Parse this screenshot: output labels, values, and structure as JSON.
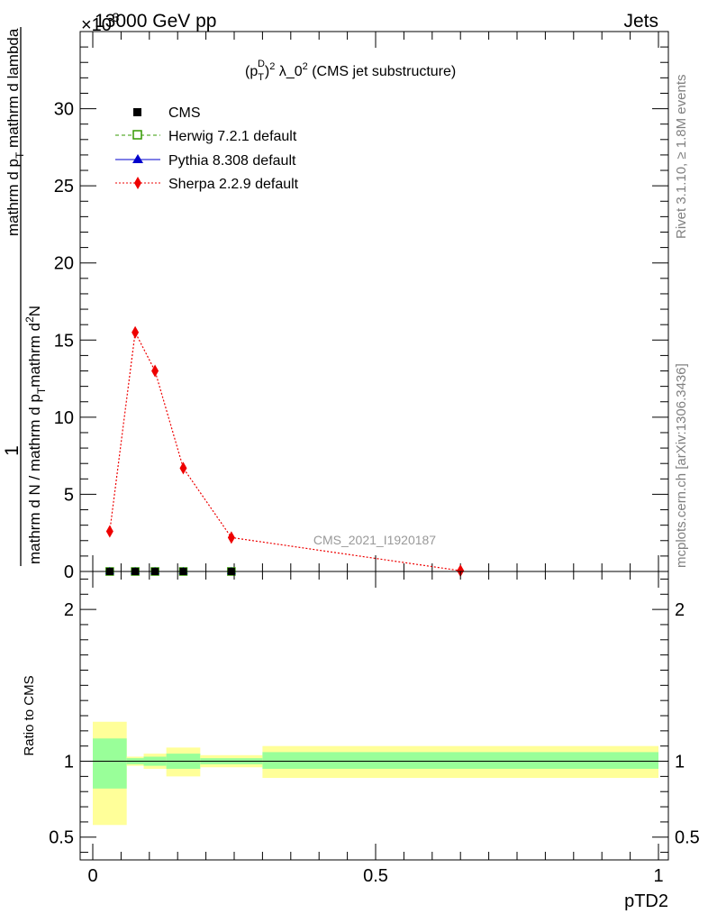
{
  "header": {
    "energy_label": "13000 GeV pp",
    "process_label": "Jets",
    "scale_factor_label": "×10",
    "scale_factor_exponent": "-3"
  },
  "side_labels": {
    "rivet_version": "Rivet 3.1.10, ≥ 1.8M events",
    "site_reference": "mcplots.cern.ch [arXiv:1306.3436]"
  },
  "analysis_id": "CMS_2021_I1920187",
  "colors": {
    "cms": "#000000",
    "herwig": "#339900",
    "pythia": "#0000cc",
    "sherpa": "#ee0000",
    "band_inner": "#99ff99",
    "band_outer": "#ffff99"
  },
  "chart_data": [
    {
      "type": "line",
      "title_parts": {
        "base": "(p",
        "sub": "T",
        "sup_d": "D",
        "sup_2": "2",
        "rest": " λ_0",
        "rest_sup": "2",
        "tail": " (CMS jet substructure)"
      },
      "ylabel_parts": {
        "numerator": "1",
        "denominator": "mathrm d N / mathrm d p",
        "denominator_sub": "T",
        "term2": "mathrm d",
        "term2_sup": "2",
        "term2_rest": "N",
        "term3": "mathrm d p",
        "term3_sub": "T",
        "term4": " mathrm d lambda"
      },
      "xlim": [
        0,
        1
      ],
      "ylim": [
        0,
        35
      ],
      "y_ticks": [
        0,
        5,
        10,
        15,
        20,
        25,
        30
      ],
      "y_tick_labels": [
        "0",
        "5",
        "10",
        "15",
        "20",
        "25",
        "30"
      ],
      "legend": [
        {
          "name": "CMS",
          "marker": "square-filled"
        },
        {
          "name": "Herwig 7.2.1 default",
          "marker": "square-open",
          "line": "dashed"
        },
        {
          "name": "Pythia 8.308 default",
          "marker": "triangle",
          "line": "solid"
        },
        {
          "name": "Sherpa 2.2.9 default",
          "marker": "diamond",
          "line": "dotted"
        }
      ],
      "series": [
        {
          "name": "CMS",
          "x": [
            0.03,
            0.075,
            0.11,
            0.16,
            0.245
          ],
          "y": [
            0,
            0,
            0,
            0,
            0
          ]
        },
        {
          "name": "Herwig 7.2.1 default",
          "x": [
            0.03,
            0.075,
            0.11,
            0.16,
            0.245
          ],
          "y": [
            0,
            0,
            0,
            0,
            0
          ]
        },
        {
          "name": "Pythia 8.308 default",
          "x": [
            0.03,
            0.075,
            0.11,
            0.16,
            0.245
          ],
          "y": [
            0,
            0,
            0,
            0,
            0
          ]
        },
        {
          "name": "Sherpa 2.2.9 default",
          "x": [
            0.03,
            0.075,
            0.11,
            0.16,
            0.245,
            0.65
          ],
          "y": [
            2.6,
            15.5,
            13.0,
            6.7,
            2.2,
            0.05
          ]
        }
      ]
    },
    {
      "type": "area",
      "ylabel": "Ratio to CMS",
      "xlabel": "pTD2",
      "xlim": [
        0,
        1
      ],
      "ylim": [
        0.35,
        2.25
      ],
      "x_ticks": [
        0,
        0.5,
        1
      ],
      "x_tick_labels": [
        "0",
        "0.5",
        "1"
      ],
      "y_ticks": [
        0.5,
        1,
        2
      ],
      "y_tick_labels": [
        "0.5",
        "1",
        "2"
      ],
      "reference_line": 1,
      "bins": [
        {
          "x_low": 0.0,
          "x_high": 0.06,
          "inner": [
            0.82,
            1.15
          ],
          "outer": [
            0.58,
            1.26
          ]
        },
        {
          "x_low": 0.06,
          "x_high": 0.09,
          "inner": [
            0.98,
            1.02
          ],
          "outer": [
            0.97,
            1.03
          ]
        },
        {
          "x_low": 0.09,
          "x_high": 0.13,
          "inner": [
            0.97,
            1.03
          ],
          "outer": [
            0.95,
            1.05
          ]
        },
        {
          "x_low": 0.13,
          "x_high": 0.19,
          "inner": [
            0.95,
            1.05
          ],
          "outer": [
            0.9,
            1.09
          ]
        },
        {
          "x_low": 0.19,
          "x_high": 0.3,
          "inner": [
            0.98,
            1.02
          ],
          "outer": [
            0.96,
            1.04
          ]
        },
        {
          "x_low": 0.3,
          "x_high": 1.0,
          "inner": [
            0.95,
            1.06
          ],
          "outer": [
            0.89,
            1.1
          ]
        }
      ]
    }
  ]
}
